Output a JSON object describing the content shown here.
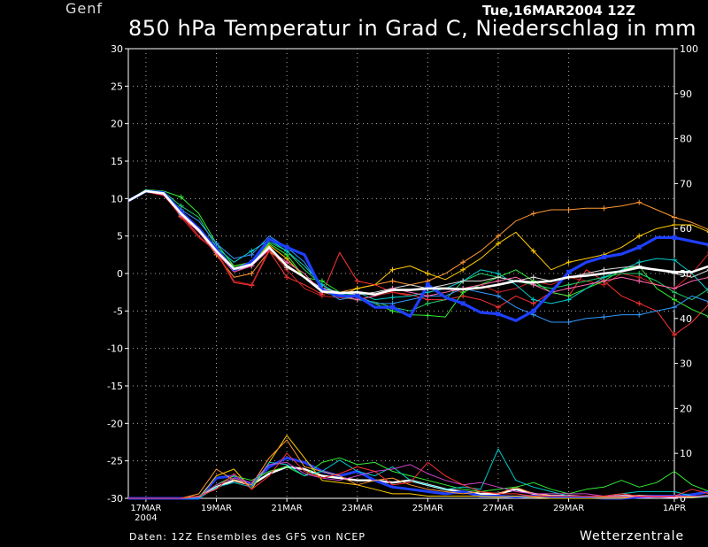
{
  "header": {
    "station": "Genf",
    "datetime": "Tue,16MAR2004 12Z",
    "title": "850 hPa Temperatur in Grad C, Niederschlag in mm"
  },
  "footer": {
    "source": "Daten: 12Z Ensembles des GFS von NCEP",
    "brand": "Wetterzentrale"
  },
  "chart_data": {
    "type": "line",
    "x_ticks": [
      {
        "day": 0.5,
        "label": "17MAR"
      },
      {
        "day": 2.5,
        "label": "19MAR"
      },
      {
        "day": 4.5,
        "label": "21MAR"
      },
      {
        "day": 6.5,
        "label": "23MAR"
      },
      {
        "day": 8.5,
        "label": "25MAR"
      },
      {
        "day": 10.5,
        "label": "27MAR"
      },
      {
        "day": 12.5,
        "label": "29MAR"
      },
      {
        "day": 15.5,
        "label": "1APR"
      }
    ],
    "x_sublabel": "2004",
    "xlim": [
      0,
      15.5
    ],
    "ylim_left": [
      -30,
      30
    ],
    "yticks_left": [
      -30,
      -25,
      -20,
      -15,
      -10,
      -5,
      0,
      5,
      10,
      15,
      20,
      25,
      30
    ],
    "ylim_right": [
      0,
      100
    ],
    "yticks_right": [
      0,
      10,
      20,
      30,
      40,
      50,
      60,
      70,
      80,
      90,
      100
    ],
    "grid": true,
    "colors": {
      "background": "#000000",
      "axes": "#ffffff",
      "grid": "#aaaaaa",
      "mean": "#ffffff",
      "operational": "#1f3fff"
    },
    "temperature_series": [
      {
        "color": "#ffffff",
        "width": 2.6,
        "values": [
          9.7,
          11.0,
          10.7,
          8.0,
          5.8,
          3.0,
          0.6,
          1.2,
          3.5,
          1.0,
          -0.5,
          -2.4,
          -2.6,
          -2.5,
          -2.8,
          -2.2,
          -2.2,
          -2.0,
          -2.0,
          -2.1,
          -1.9,
          -1.5,
          -1.0,
          -1.2,
          -1.0,
          -0.5,
          -0.3,
          0.0,
          0.3,
          0.8,
          0.5,
          0.2,
          0.2,
          1.0
        ]
      },
      {
        "color": "#1f3fff",
        "width": 3.2,
        "values": [
          9.7,
          11.0,
          10.8,
          8.2,
          6.0,
          3.3,
          0.5,
          1.5,
          4.6,
          3.5,
          2.5,
          -2.2,
          -3.0,
          -3.0,
          -4.5,
          -4.5,
          -5.7,
          -1.5,
          -3.2,
          -4.0,
          -5.2,
          -5.4,
          -6.3,
          -5.0,
          -2.5,
          0.2,
          1.5,
          2.2,
          2.6,
          3.5,
          4.8,
          4.8,
          4.3,
          3.8
        ]
      },
      {
        "color": "#ff9933",
        "width": 1,
        "values": [
          9.6,
          11.2,
          10.6,
          7.6,
          5.6,
          2.5,
          -0.5,
          0.0,
          3.0,
          1.0,
          -0.5,
          -2.0,
          -2.5,
          -2.0,
          -1.5,
          -1.0,
          -1.5,
          -1.0,
          0.0,
          1.5,
          3.0,
          5.0,
          7.0,
          8.0,
          8.5,
          8.5,
          8.7,
          8.7,
          9.0,
          9.5,
          8.5,
          7.5,
          6.8,
          5.8
        ]
      },
      {
        "color": "#ffcc00",
        "width": 1,
        "values": [
          9.8,
          11.0,
          10.5,
          8.2,
          6.0,
          3.0,
          1.0,
          1.5,
          3.8,
          2.0,
          -0.5,
          -2.5,
          -3.0,
          -2.0,
          -1.5,
          0.5,
          1.0,
          0.0,
          -0.8,
          0.5,
          2.0,
          4.0,
          5.5,
          3.0,
          0.5,
          1.5,
          2.0,
          2.5,
          3.5,
          5.0,
          6.0,
          6.5,
          6.5,
          5.5
        ]
      },
      {
        "color": "#ff3333",
        "width": 1,
        "values": [
          9.7,
          10.9,
          10.4,
          7.8,
          5.0,
          2.8,
          -1.2,
          -1.6,
          3.0,
          -0.5,
          -1.5,
          -2.8,
          2.8,
          -1.0,
          -1.5,
          -2.5,
          -2.8,
          -3.5,
          -3.5,
          -3.0,
          -3.5,
          -4.5,
          -3.0,
          -4.0,
          -2.5,
          -3.0,
          0.5,
          -1.0,
          -3.0,
          -4.0,
          -5.0,
          -8.2,
          -6.5,
          -4.0
        ]
      },
      {
        "color": "#cc2222",
        "width": 1,
        "values": [
          9.6,
          11.1,
          10.6,
          7.5,
          4.8,
          3.0,
          -1.0,
          -1.5,
          3.3,
          0.5,
          -2.0,
          -3.0,
          -3.2,
          -3.5,
          -3.0,
          -2.5,
          -3.0,
          -2.5,
          -2.0,
          -2.5,
          -1.5,
          -2.5,
          -2.0,
          -1.0,
          -1.5,
          -0.5,
          -1.0,
          -1.5,
          0.0,
          -0.5,
          -1.5,
          -2.0,
          0.0,
          2.8
        ]
      },
      {
        "color": "#33ee33",
        "width": 1,
        "values": [
          9.8,
          11.2,
          11.0,
          10.2,
          8.0,
          4.0,
          1.0,
          1.5,
          4.0,
          2.5,
          -0.5,
          -1.0,
          -2.5,
          -3.0,
          -4.0,
          -5.0,
          -5.5,
          -5.6,
          -5.8,
          -2.5,
          -1.5,
          -0.5,
          0.5,
          -1.0,
          -2.5,
          -3.0,
          -2.0,
          -1.0,
          0.5,
          1.0,
          -2.0,
          -3.5,
          -4.8,
          -5.8
        ]
      },
      {
        "color": "#22cc66",
        "width": 1,
        "values": [
          9.7,
          11.1,
          10.9,
          9.0,
          7.5,
          3.5,
          0.8,
          1.2,
          4.2,
          3.0,
          0.5,
          -1.5,
          -3.0,
          -3.5,
          -3.8,
          -4.5,
          -5.0,
          -4.0,
          -3.5,
          -1.0,
          0.0,
          -0.5,
          -1.0,
          -1.5,
          -2.0,
          -1.5,
          -1.0,
          -0.5,
          0.0,
          0.0,
          -1.0,
          -2.5,
          -3.5,
          -2.0
        ]
      },
      {
        "color": "#00cccc",
        "width": 1,
        "values": [
          9.7,
          11.0,
          10.6,
          7.9,
          6.2,
          3.5,
          1.5,
          3.0,
          4.5,
          3.0,
          1.0,
          -1.5,
          -2.8,
          -2.5,
          -3.5,
          -3.2,
          -3.0,
          -2.5,
          -2.0,
          -1.0,
          0.5,
          0.0,
          -1.5,
          -3.5,
          -4.0,
          -3.5,
          -2.0,
          -0.5,
          0.5,
          1.5,
          2.0,
          1.8,
          0.0,
          -2.5
        ]
      },
      {
        "color": "#3399ff",
        "width": 1,
        "values": [
          9.8,
          11.1,
          10.9,
          8.5,
          7.0,
          4.0,
          2.0,
          2.5,
          5.0,
          3.5,
          1.5,
          -2.0,
          -3.5,
          -3.0,
          -4.0,
          -4.0,
          -3.5,
          -3.0,
          -3.0,
          -2.0,
          -2.5,
          -3.0,
          -4.5,
          -5.5,
          -6.5,
          -6.5,
          -6.0,
          -5.8,
          -5.5,
          -5.5,
          -5.0,
          -4.5,
          -3.0,
          -3.8
        ]
      },
      {
        "color": "#dddddd",
        "width": 1,
        "values": [
          9.7,
          11.0,
          10.7,
          8.0,
          6.0,
          3.2,
          0.4,
          1.0,
          3.6,
          0.8,
          -0.5,
          -2.0,
          -2.5,
          -2.8,
          -2.5,
          -2.0,
          -1.5,
          -2.0,
          -1.5,
          -1.0,
          -1.0,
          -0.5,
          -1.0,
          -0.5,
          -1.0,
          -0.5,
          0.0,
          0.5,
          0.8,
          1.0,
          0.5,
          0.0,
          -0.5,
          0.5
        ]
      },
      {
        "color": "#ff66aa",
        "width": 1,
        "values": [
          9.6,
          11.0,
          10.5,
          7.8,
          5.5,
          2.8,
          0.2,
          1.0,
          3.2,
          1.5,
          0.0,
          -2.5,
          -2.8,
          -3.5,
          -3.0,
          -2.0,
          -2.5,
          -3.0,
          -2.5,
          -2.0,
          -1.5,
          -1.0,
          -0.5,
          -1.5,
          -2.5,
          -2.0,
          -1.5,
          -1.0,
          -0.5,
          -1.0,
          -1.5,
          -2.0,
          -1.0,
          -0.5
        ]
      }
    ],
    "precip_series": [
      {
        "color": "#ffffff",
        "width": 2.4,
        "values": [
          0,
          0,
          0,
          0,
          0.3,
          2.5,
          4.0,
          3.0,
          5.5,
          7.0,
          6.5,
          5.0,
          4.5,
          4.0,
          4.0,
          3.5,
          4.0,
          3.0,
          2.0,
          1.5,
          1.0,
          1.0,
          2.0,
          1.0,
          0.5,
          0.5,
          0.3,
          0.3,
          0.5,
          0.5,
          0.5,
          0.3,
          0.3,
          0.5
        ]
      },
      {
        "color": "#1f3fff",
        "width": 3,
        "values": [
          0,
          0,
          0,
          0,
          0,
          4.5,
          5.0,
          3.0,
          7.0,
          9.0,
          8.0,
          6.0,
          5.0,
          6.0,
          4.0,
          2.5,
          2.0,
          1.5,
          1.0,
          1.5,
          0.5,
          0.5,
          0.3,
          0.5,
          0.3,
          0.3,
          0.3,
          0,
          0,
          0.3,
          0.5,
          0.5,
          0.8,
          1.5
        ]
      },
      {
        "color": "#ffcc00",
        "width": 1,
        "values": [
          0,
          0,
          0,
          0,
          0,
          5.0,
          6.5,
          2.0,
          8.0,
          14.0,
          9.0,
          4.0,
          3.5,
          3.0,
          2.0,
          1.0,
          1.0,
          0.5,
          0.5,
          0.5,
          0.5,
          0.3,
          0.5,
          0.3,
          0,
          0,
          0,
          0,
          0,
          0.5,
          0.3,
          0.3,
          0.3,
          0.5
        ]
      },
      {
        "color": "#ff9933",
        "width": 1,
        "values": [
          0,
          0,
          0,
          0,
          1.0,
          6.5,
          4.0,
          3.0,
          9.0,
          13.0,
          7.0,
          6.0,
          5.0,
          3.0,
          4.0,
          4.5,
          3.0,
          2.0,
          1.5,
          1.0,
          1.5,
          1.0,
          2.5,
          1.0,
          0.5,
          0.5,
          0.5,
          0.3,
          0.3,
          0.5,
          0.5,
          0.5,
          0.5,
          0.3
        ]
      },
      {
        "color": "#33ee33",
        "width": 1,
        "values": [
          0,
          0,
          0,
          0,
          0.5,
          3.0,
          5.0,
          4.0,
          6.0,
          7.0,
          5.0,
          8.0,
          9.0,
          7.5,
          8.0,
          6.0,
          5.0,
          4.0,
          3.0,
          2.0,
          1.5,
          2.0,
          2.5,
          3.5,
          2.0,
          1.0,
          2.0,
          2.5,
          4.0,
          2.5,
          3.5,
          6.0,
          3.0,
          1.5
        ]
      },
      {
        "color": "#00cccc",
        "width": 1,
        "values": [
          0,
          0,
          0,
          0,
          0,
          2.5,
          3.5,
          2.5,
          8.0,
          7.5,
          5.0,
          6.0,
          8.5,
          6.0,
          5.0,
          7.0,
          4.0,
          3.0,
          2.0,
          2.5,
          2.0,
          11.0,
          4.0,
          2.5,
          1.5,
          0.5,
          0.5,
          0.5,
          1.0,
          1.5,
          1.5,
          1.5,
          0.5,
          0.3
        ]
      },
      {
        "color": "#cc44cc",
        "width": 1,
        "values": [
          0,
          0,
          0,
          0,
          0.3,
          3.0,
          4.5,
          3.5,
          7.5,
          8.0,
          5.5,
          4.5,
          4.0,
          5.0,
          6.0,
          6.5,
          7.5,
          5.5,
          4.0,
          3.0,
          3.5,
          2.5,
          1.5,
          1.0,
          1.0,
          1.0,
          1.0,
          0.5,
          0.5,
          0.3,
          0.3,
          0.3,
          0.5,
          0.5
        ]
      },
      {
        "color": "#ff3333",
        "width": 1,
        "values": [
          0,
          0,
          0,
          0,
          0.5,
          2.0,
          5.5,
          2.0,
          5.0,
          10.0,
          6.0,
          4.5,
          5.5,
          7.0,
          6.0,
          3.0,
          3.5,
          8.0,
          5.0,
          3.0,
          1.5,
          1.0,
          1.0,
          0.5,
          0.5,
          0.5,
          0.5,
          0.5,
          1.0,
          0.5,
          0.5,
          0.5,
          2.0,
          1.0
        ]
      }
    ]
  }
}
